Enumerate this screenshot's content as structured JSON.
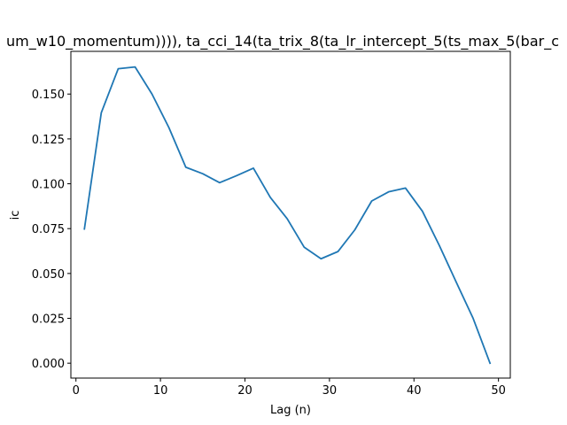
{
  "chart_data": {
    "type": "line",
    "title": "um_w10_momentum)))), ta_cci_14(ta_trix_8(ta_lr_intercept_5(ts_max_5(bar_c",
    "xlabel": "Lag (n)",
    "ylabel": "ic",
    "xlim": [
      -0.6,
      51.4
    ],
    "ylim": [
      -0.0083,
      0.1738
    ],
    "xticks": [
      0,
      10,
      20,
      30,
      40,
      50
    ],
    "yticks": [
      0.0,
      0.025,
      0.05,
      0.075,
      0.1,
      0.125,
      0.15
    ],
    "ytick_labels": [
      "0.000",
      "0.025",
      "0.050",
      "0.075",
      "0.100",
      "0.125",
      "0.150"
    ],
    "grid": false,
    "series": [
      {
        "color": "#1f77b4",
        "x": [
          1,
          3,
          5,
          7,
          9,
          11,
          13,
          15,
          17,
          19,
          21,
          23,
          25,
          27,
          29,
          31,
          33,
          35,
          37,
          39,
          41,
          43,
          45,
          47,
          49
        ],
        "y": [
          0.0748,
          0.1396,
          0.1641,
          0.1651,
          0.15,
          0.1313,
          0.1092,
          0.1056,
          0.1006,
          0.1045,
          0.1087,
          0.0924,
          0.0805,
          0.0647,
          0.0582,
          0.0622,
          0.0743,
          0.0904,
          0.0955,
          0.0976,
          0.0847,
          0.0656,
          0.0452,
          0.025,
          0.0
        ]
      }
    ]
  }
}
